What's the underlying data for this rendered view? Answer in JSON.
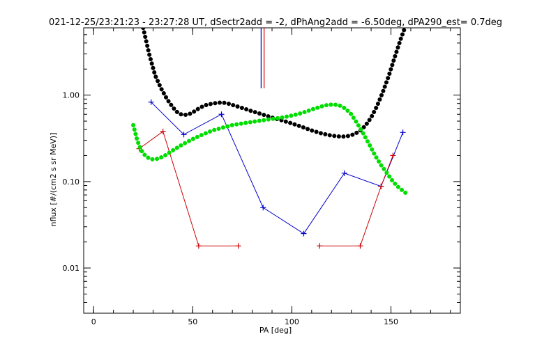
{
  "chart_data": {
    "type": "line",
    "title": "021-12-25/23:21:23 - 23:27:28 UT, dSectr2add = -2, dPhAng2add = -6.50deg, dPA290_est=   0.7deg",
    "xlabel": "PA [deg]",
    "ylabel": "nflux [#/(cm2 s sr MeV)]",
    "xlim": [
      -5,
      185
    ],
    "ylim": [
      0.003,
      6.0
    ],
    "yscale": "log",
    "grid": false,
    "x_ticks": [
      {
        "value": 0,
        "label": "0"
      },
      {
        "value": 50,
        "label": "50"
      },
      {
        "value": 100,
        "label": "100"
      },
      {
        "value": 150,
        "label": "150"
      }
    ],
    "x_minor_step": 10,
    "y_ticks": [
      {
        "value": 0.01,
        "label": "0.01"
      },
      {
        "value": 0.1,
        "label": "0.10"
      },
      {
        "value": 1.0,
        "label": "1.00"
      }
    ],
    "colors": {
      "blue": "#0000cc",
      "red": "#cc0000",
      "black": "#000000",
      "green": "#00dd00",
      "axes": "#000000"
    },
    "vertical_markers": [
      {
        "x": 84.5,
        "y_from": 1.2,
        "y_to": 6.0,
        "color": "#0000cc"
      },
      {
        "x": 86.0,
        "y_from": 1.2,
        "y_to": 6.0,
        "color": "#cc0000"
      }
    ],
    "series": [
      {
        "color": "#0000cc",
        "style": "line-plus",
        "x": [
          29,
          45.5,
          64.5,
          85.5,
          106,
          126.5,
          145,
          156
        ],
        "y": [
          0.83,
          0.35,
          0.6,
          0.05,
          0.025,
          0.125,
          0.088,
          0.37
        ]
      },
      {
        "color": "#cc0000",
        "style": "line-plus",
        "segments": [
          {
            "x": [
              23,
              35
            ],
            "y": [
              0.24,
              0.38
            ]
          },
          {
            "x": [
              35,
              53
            ],
            "y": [
              0.38,
              0.018
            ]
          },
          {
            "x": [
              53,
              73
            ],
            "y": [
              0.018,
              0.018
            ]
          },
          {
            "x": [
              114,
              134.5
            ],
            "y": [
              0.018,
              0.018
            ]
          },
          {
            "x": [
              134.5,
              145
            ],
            "y": [
              0.018,
              0.088
            ]
          },
          {
            "x": [
              145,
              151
            ],
            "y": [
              0.088,
              0.2
            ]
          }
        ],
        "points": [
          {
            "x": 23,
            "y": 0.24
          },
          {
            "x": 35,
            "y": 0.38
          },
          {
            "x": 53,
            "y": 0.018
          },
          {
            "x": 73,
            "y": 0.018
          },
          {
            "x": 114,
            "y": 0.018
          },
          {
            "x": 134.5,
            "y": 0.018
          },
          {
            "x": 145,
            "y": 0.088
          },
          {
            "x": 151,
            "y": 0.2
          }
        ]
      },
      {
        "color": "#000000",
        "style": "dots",
        "x": [
          25,
          28,
          31,
          34,
          37,
          40,
          42,
          44,
          46,
          48,
          50,
          53,
          56,
          60,
          64,
          67,
          70,
          75,
          80,
          85,
          90,
          95,
          100,
          105,
          110,
          115,
          120,
          125,
          128,
          131,
          134,
          137,
          140,
          143,
          146,
          149,
          152,
          155,
          157
        ],
        "y": [
          6.0,
          3.0,
          1.7,
          1.2,
          0.9,
          0.72,
          0.64,
          0.6,
          0.59,
          0.6,
          0.63,
          0.7,
          0.76,
          0.8,
          0.82,
          0.81,
          0.77,
          0.71,
          0.65,
          0.6,
          0.55,
          0.51,
          0.47,
          0.43,
          0.39,
          0.36,
          0.34,
          0.33,
          0.335,
          0.35,
          0.38,
          0.44,
          0.55,
          0.75,
          1.1,
          1.7,
          2.8,
          4.5,
          6.0
        ]
      },
      {
        "color": "#00dd00",
        "style": "dots",
        "x": [
          20,
          22,
          24,
          26,
          28,
          30,
          33,
          36,
          40,
          45,
          50,
          55,
          60,
          65,
          70,
          75,
          80,
          85,
          90,
          95,
          100,
          105,
          110,
          115,
          118,
          121,
          124,
          127,
          130,
          133,
          136,
          139,
          142,
          145,
          148,
          151,
          154,
          157,
          159
        ],
        "y": [
          0.45,
          0.3,
          0.23,
          0.2,
          0.185,
          0.18,
          0.185,
          0.2,
          0.23,
          0.27,
          0.31,
          0.35,
          0.39,
          0.42,
          0.45,
          0.47,
          0.49,
          0.51,
          0.53,
          0.55,
          0.58,
          0.62,
          0.68,
          0.74,
          0.77,
          0.78,
          0.76,
          0.7,
          0.6,
          0.47,
          0.36,
          0.27,
          0.2,
          0.155,
          0.125,
          0.1,
          0.085,
          0.075,
          0.07
        ]
      }
    ]
  }
}
